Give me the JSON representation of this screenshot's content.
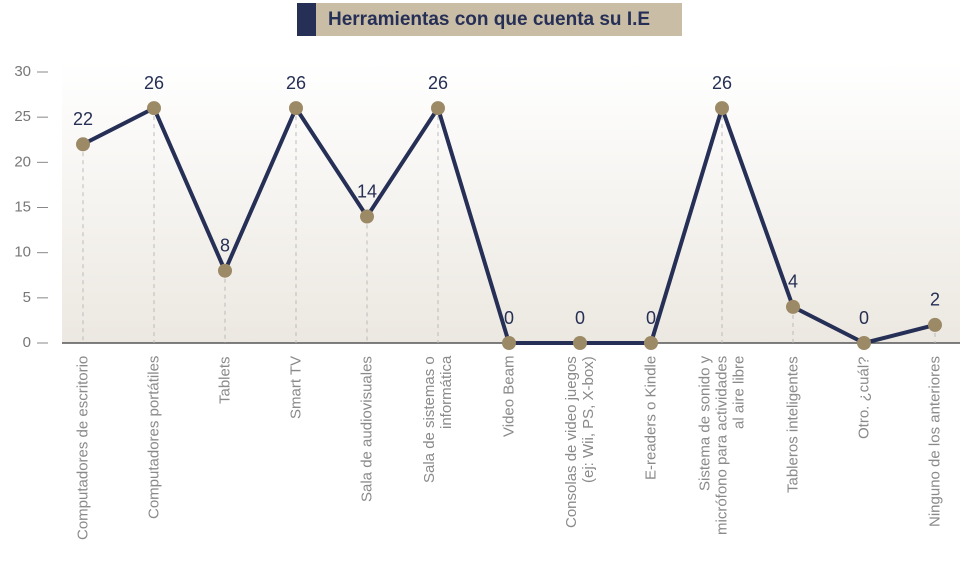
{
  "chart_data": {
    "type": "line",
    "title": "Herramientas con que cuenta su  I.E",
    "categories": [
      "Computadores de escritorio",
      "Computadores portátiles",
      "Tablets",
      "Smart TV",
      "Sala de audiovisuales",
      "Sala de sistemas o informática",
      "Video Beam",
      "Consolas de video juegos (ej: Wii, PS, X-box)",
      "E-readers o Kindle",
      "Sistema de sonido y micrófono para actividades al aire libre",
      "Tableros inteligentes",
      "Otro. ¿cuál?",
      "Ninguno de los anteriores"
    ],
    "values": [
      22,
      26,
      8,
      26,
      14,
      26,
      0,
      0,
      0,
      26,
      4,
      0,
      2
    ],
    "color": "#262f55",
    "marker_color": "#9c8a66",
    "ylim": [
      0,
      30
    ],
    "yticks": [
      0,
      5,
      10,
      15,
      20,
      25,
      30
    ]
  }
}
